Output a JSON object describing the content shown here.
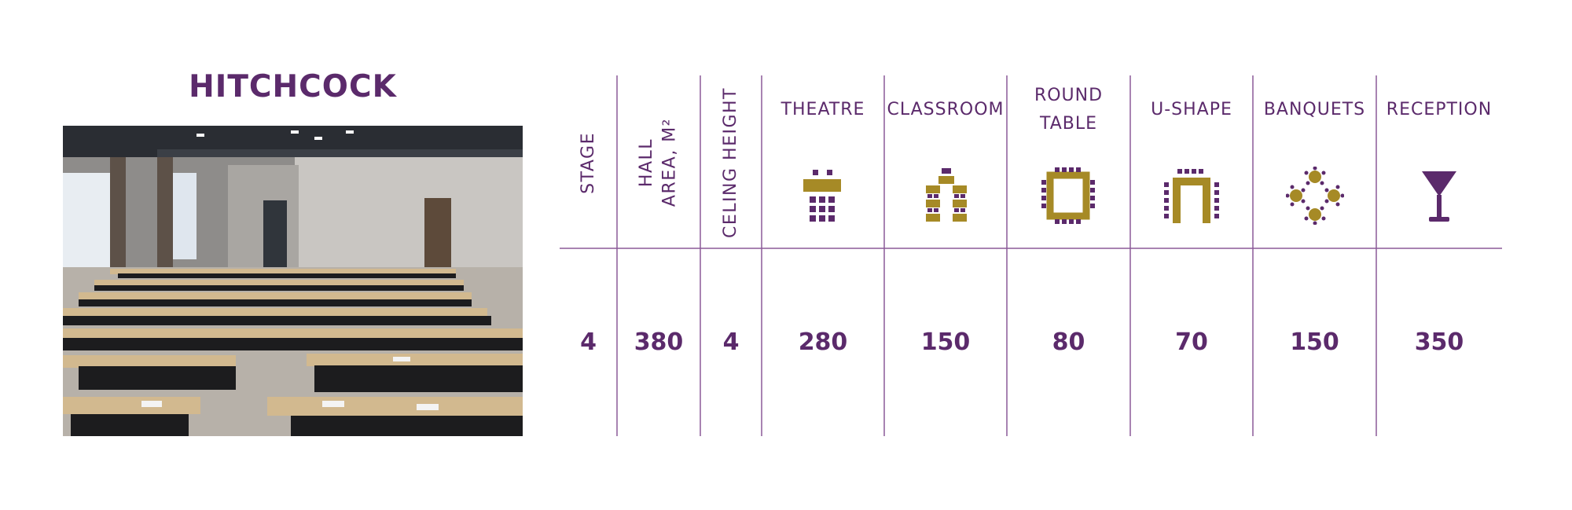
{
  "hall_name": "HITCHCOCK",
  "colors": {
    "purple": "#5b2a6b",
    "gold": "#a68a26",
    "line": "#8b5a98"
  },
  "columns": [
    {
      "key": "stage",
      "header": "STAGE",
      "value": "4"
    },
    {
      "key": "hall_area",
      "header_line1": "HALL",
      "header_line2": "AREA, M²",
      "value": "380"
    },
    {
      "key": "ceiling_height",
      "header": "CELING HEIGHT",
      "value": "4"
    },
    {
      "key": "theatre",
      "header": "THEATRE",
      "icon": "theatre-layout-icon",
      "value": "280"
    },
    {
      "key": "classroom",
      "header": "CLASSROOM",
      "icon": "classroom-layout-icon",
      "value": "150"
    },
    {
      "key": "round_table",
      "header_line1": "ROUND",
      "header_line2": "TABLE",
      "icon": "round-table-layout-icon",
      "value": "80"
    },
    {
      "key": "u_shape",
      "header": "U-SHAPE",
      "icon": "u-shape-layout-icon",
      "value": "70"
    },
    {
      "key": "banquets",
      "header": "BANQUETS",
      "icon": "banquet-layout-icon",
      "value": "150"
    },
    {
      "key": "reception",
      "header": "RECEPTION",
      "icon": "cocktail-glass-icon",
      "value": "350"
    }
  ]
}
